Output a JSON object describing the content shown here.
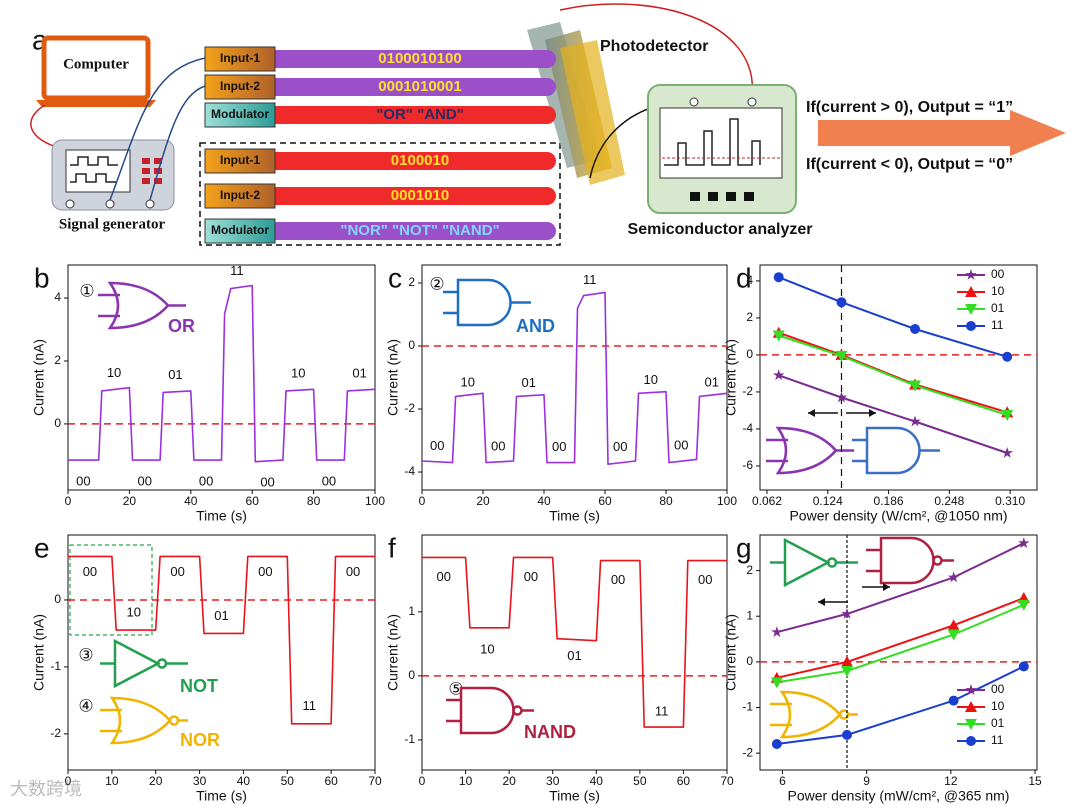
{
  "panel_a": {
    "label": "a",
    "computer": "Computer",
    "signal_generator": "Signal generator",
    "top_rows": [
      {
        "name": "Input-1",
        "signal": "0100010100"
      },
      {
        "name": "Input-2",
        "signal": "0001010001"
      },
      {
        "name": "Modulator",
        "signal": "\"OR\" \"AND\""
      }
    ],
    "bottom_rows": [
      {
        "name": "Input-1",
        "signal": "0100010"
      },
      {
        "name": "Input-2",
        "signal": "0001010"
      },
      {
        "name": "Modulator",
        "signal": "\"NOR\" \"NOT\" \"NAND\""
      }
    ],
    "photodetector": "Photodetector",
    "analyzer": "Semiconductor analyzer",
    "rules": [
      "If(current > 0), Output = “1”",
      "If(current < 0), Output = “0”"
    ]
  },
  "chart_data": [
    {
      "panel": "b",
      "type": "line",
      "gates": [
        {
          "number": "①",
          "name": "OR"
        }
      ],
      "xlabel": "Time (s)",
      "ylabel": "Current (nA)",
      "x": [
        0,
        10,
        11,
        20,
        21,
        30,
        31,
        40,
        41,
        50,
        51,
        53,
        60,
        61,
        70,
        71,
        80,
        81,
        90,
        91,
        100
      ],
      "values": [
        -1.15,
        -1.15,
        1.05,
        1.15,
        -1.15,
        -1.15,
        1.0,
        1.05,
        -1.15,
        -1.15,
        3.5,
        4.3,
        4.4,
        -1.2,
        -1.15,
        1.05,
        1.1,
        -1.15,
        -1.15,
        1.05,
        1.1
      ],
      "color": "#9b30e0",
      "xlim": [
        0,
        100
      ],
      "ylim": [
        -2.1,
        5.05
      ],
      "xticks": [
        0,
        20,
        40,
        60,
        80,
        100
      ],
      "yticks": [
        0,
        2,
        4
      ],
      "state_labels": [
        "00",
        "10",
        "00",
        "01",
        "00",
        "11",
        "00",
        "10",
        "00",
        "01"
      ],
      "hline": 0,
      "hline_color": "#e02020"
    },
    {
      "panel": "c",
      "type": "line",
      "gates": [
        {
          "number": "②",
          "name": "AND"
        }
      ],
      "xlabel": "Time (s)",
      "ylabel": "Current (nA)",
      "x": [
        0,
        10,
        11,
        20,
        21,
        30,
        31,
        40,
        41,
        50,
        51,
        53,
        60,
        61,
        70,
        71,
        80,
        81,
        90,
        91,
        100
      ],
      "values": [
        -3.65,
        -3.7,
        -1.6,
        -1.5,
        -3.7,
        -3.65,
        -1.6,
        -1.55,
        -3.7,
        -3.7,
        1.2,
        1.6,
        1.7,
        -3.75,
        -3.65,
        -1.5,
        -1.45,
        -3.7,
        -3.6,
        -1.6,
        -1.5
      ],
      "color": "#9b30e0",
      "xlim": [
        0,
        100
      ],
      "ylim": [
        -4.57,
        2.57
      ],
      "xticks": [
        0,
        20,
        40,
        60,
        80,
        100
      ],
      "yticks": [
        -4,
        -2,
        0,
        2
      ],
      "state_labels": [
        "00",
        "10",
        "00",
        "01",
        "00",
        "11",
        "00",
        "10",
        "00",
        "01"
      ],
      "hline": 0,
      "hline_color": "#e02020"
    },
    {
      "panel": "d",
      "type": "line",
      "xlabel": "Power density (W/cm², @1050 nm)",
      "ylabel": "Current (nA)",
      "x": [
        0.074,
        0.138,
        0.213,
        0.307
      ],
      "series": [
        {
          "name": "00",
          "color": "#7b2a90",
          "marker": "star",
          "values": [
            -1.1,
            -2.3,
            -3.6,
            -5.3
          ]
        },
        {
          "name": "10",
          "color": "#ee1111",
          "marker": "triangle",
          "values": [
            1.2,
            0.0,
            -1.6,
            -3.1
          ]
        },
        {
          "name": "01",
          "color": "#33dd22",
          "marker": "triangle-down",
          "values": [
            1.05,
            -0.05,
            -1.65,
            -3.25
          ]
        },
        {
          "name": "11",
          "color": "#1a3fd0",
          "marker": "circle",
          "values": [
            4.2,
            2.85,
            1.4,
            -0.1
          ]
        }
      ],
      "xlim": [
        0.0549,
        0.3374
      ],
      "ylim": [
        -7.3,
        4.86
      ],
      "xticks": [
        0.062,
        0.124,
        0.186,
        0.248,
        {
          "value": 0.31,
          "label": "0.310"
        }
      ],
      "yticks": [
        -6,
        -4,
        -2,
        0,
        2,
        4
      ],
      "legend": "upper right",
      "hline": 0,
      "hline_color": "#e02020",
      "vline": 0.138
    },
    {
      "panel": "e",
      "type": "line",
      "gates": [
        {
          "number": "③",
          "name": "NOT"
        },
        {
          "number": "④",
          "name": "NOR"
        }
      ],
      "xlabel": "Time (s)",
      "ylabel": "Current (nA)",
      "x": [
        0,
        10,
        11,
        20,
        21,
        30,
        31,
        40,
        41,
        50,
        51,
        60,
        61,
        70
      ],
      "values": [
        0.65,
        0.65,
        -0.45,
        -0.45,
        0.65,
        0.65,
        -0.5,
        -0.5,
        0.65,
        0.65,
        -1.85,
        -1.85,
        0.65,
        0.65
      ],
      "color": "#e8141b",
      "xlim": [
        0,
        70
      ],
      "ylim": [
        -2.54,
        0.97
      ],
      "xticks": [
        0,
        10,
        20,
        30,
        40,
        50,
        60,
        70
      ],
      "yticks": [
        -2,
        -1,
        0
      ],
      "state_labels": [
        "00",
        "10",
        "00",
        "01",
        "00",
        "11",
        "00"
      ],
      "hline": 0,
      "hline_color": "#e02020"
    },
    {
      "panel": "f",
      "type": "line",
      "gates": [
        {
          "number": "⑤",
          "name": "NAND"
        }
      ],
      "xlabel": "Time (s)",
      "ylabel": "Current (nA)",
      "x": [
        0,
        10,
        11,
        20,
        21,
        30,
        31,
        40,
        41,
        50,
        51,
        60,
        61,
        70
      ],
      "values": [
        1.85,
        1.85,
        0.75,
        0.75,
        1.85,
        1.85,
        0.58,
        0.55,
        1.8,
        1.8,
        -0.8,
        -0.8,
        1.8,
        1.8
      ],
      "color": "#e8141b",
      "xlim": [
        0,
        70
      ],
      "ylim": [
        -1.47,
        2.2
      ],
      "xticks": [
        0,
        10,
        20,
        30,
        40,
        50,
        60,
        70
      ],
      "yticks": [
        -1,
        0,
        1
      ],
      "state_labels": [
        "00",
        "10",
        "00",
        "01",
        "00",
        "11",
        "00"
      ],
      "hline": 0,
      "hline_color": "#e02020"
    },
    {
      "panel": "g",
      "type": "line",
      "xlabel": "Power density (mW/cm², @365 nm)",
      "ylabel": "Current (nA)",
      "x": [
        5.8,
        8.3,
        12.1,
        14.6
      ],
      "series": [
        {
          "name": "00",
          "color": "#7b2a90",
          "marker": "star",
          "values": [
            0.65,
            1.05,
            1.85,
            2.6
          ]
        },
        {
          "name": "10",
          "color": "#ee1111",
          "marker": "triangle",
          "values": [
            -0.35,
            0.0,
            0.8,
            1.4
          ]
        },
        {
          "name": "01",
          "color": "#33dd22",
          "marker": "triangle-down",
          "values": [
            -0.45,
            -0.2,
            0.6,
            1.25
          ]
        },
        {
          "name": "11",
          "color": "#1a3fd0",
          "marker": "circle",
          "values": [
            -1.8,
            -1.6,
            -0.85,
            -0.1
          ]
        }
      ],
      "xlim": [
        5.2,
        15.07
      ],
      "ylim": [
        -2.37,
        2.78
      ],
      "xticks": [
        6,
        9,
        12,
        15
      ],
      "yticks": [
        -2,
        -1,
        0,
        1,
        2
      ],
      "legend": "lower right",
      "hline": 0,
      "hline_color": "#e02020",
      "vline": 8.3
    }
  ],
  "watermark": "大数跨境"
}
